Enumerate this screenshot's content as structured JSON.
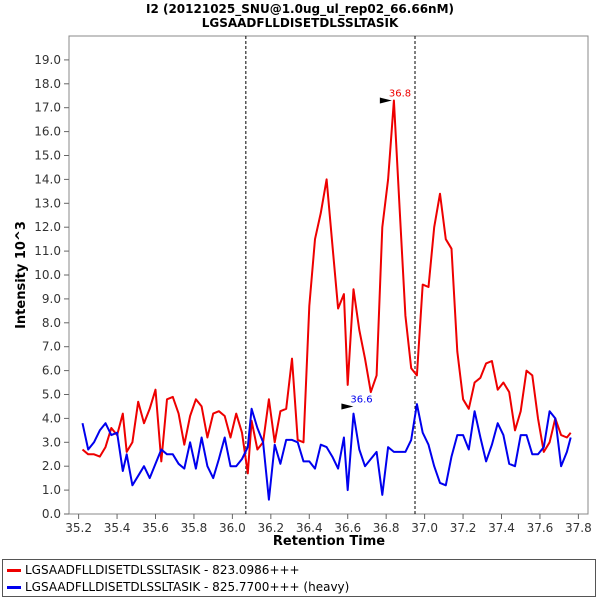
{
  "chart_data": {
    "type": "line",
    "title": "I2 (20121025_SNU@1.0ug_ul_rep02_66.66nM)",
    "subtitle": "LGSAADFLLDISETDLSSLTASIK",
    "xlabel": "Retention Time",
    "ylabel": "Intensity 10^3",
    "xlim": [
      35.15,
      37.85
    ],
    "ylim": [
      0,
      20
    ],
    "xticks": [
      "35.2",
      "35.4",
      "35.6",
      "35.8",
      "36.0",
      "36.2",
      "36.4",
      "36.6",
      "36.8",
      "37.0",
      "37.2",
      "37.4",
      "37.6",
      "37.8"
    ],
    "yticks": [
      "0.0",
      "1.0",
      "2.0",
      "3.0",
      "4.0",
      "5.0",
      "6.0",
      "7.0",
      "8.0",
      "9.0",
      "10.0",
      "11.0",
      "12.0",
      "13.0",
      "14.0",
      "15.0",
      "16.0",
      "17.0",
      "18.0",
      "19.0"
    ],
    "vlines": [
      36.07,
      36.95
    ],
    "legend_position": "bottom",
    "series": [
      {
        "name": "LGSAADFLLDISETDLSSLTASIK - 823.0986+++",
        "color": "#ee0000",
        "x": [
          35.22,
          35.25,
          35.28,
          35.31,
          35.34,
          35.37,
          35.4,
          35.43,
          35.45,
          35.48,
          35.51,
          35.54,
          35.57,
          35.6,
          35.63,
          35.66,
          35.69,
          35.72,
          35.75,
          35.78,
          35.81,
          35.84,
          35.87,
          35.9,
          35.93,
          35.96,
          35.99,
          36.02,
          36.05,
          36.08,
          36.1,
          36.13,
          36.16,
          36.19,
          36.22,
          36.25,
          36.28,
          36.31,
          36.34,
          36.37,
          36.4,
          36.43,
          36.46,
          36.49,
          36.52,
          36.55,
          36.58,
          36.6,
          36.63,
          36.66,
          36.69,
          36.72,
          36.75,
          36.78,
          36.81,
          36.84,
          36.87,
          36.9,
          36.93,
          36.96,
          36.99,
          37.02,
          37.05,
          37.08,
          37.11,
          37.14,
          37.17,
          37.2,
          37.23,
          37.26,
          37.29,
          37.32,
          37.35,
          37.38,
          37.41,
          37.44,
          37.47,
          37.5,
          37.53,
          37.56,
          37.59,
          37.62,
          37.65,
          37.68,
          37.71,
          37.74,
          37.76
        ],
        "values": [
          2.7,
          2.5,
          2.5,
          2.4,
          2.8,
          3.6,
          3.3,
          4.2,
          2.6,
          3.0,
          4.7,
          3.8,
          4.4,
          5.2,
          2.2,
          4.8,
          4.9,
          4.2,
          2.9,
          4.1,
          4.8,
          4.5,
          3.2,
          4.2,
          4.3,
          4.1,
          3.2,
          4.2,
          3.4,
          1.7,
          3.9,
          2.7,
          3.0,
          4.8,
          3.0,
          4.3,
          4.4,
          6.5,
          3.1,
          3.0,
          8.7,
          11.5,
          12.6,
          14.0,
          11.3,
          8.6,
          9.2,
          5.4,
          9.4,
          7.7,
          6.5,
          5.1,
          5.8,
          12.0,
          14.0,
          17.3,
          12.8,
          8.3,
          6.1,
          5.8,
          9.6,
          9.5,
          12.0,
          13.4,
          11.5,
          11.1,
          6.8,
          4.8,
          4.4,
          5.5,
          5.7,
          6.3,
          6.4,
          5.2,
          5.5,
          5.1,
          3.5,
          4.3,
          6.0,
          5.8,
          4.0,
          2.6,
          3.0,
          4.0,
          3.3,
          3.2,
          3.4
        ]
      },
      {
        "name": "LGSAADFLLDISETDLSSLTASIK - 825.7700+++ (heavy)",
        "color": "#0000ee",
        "x": [
          35.22,
          35.25,
          35.28,
          35.31,
          35.34,
          35.37,
          35.4,
          35.43,
          35.45,
          35.48,
          35.51,
          35.54,
          35.57,
          35.6,
          35.63,
          35.66,
          35.69,
          35.72,
          35.75,
          35.78,
          35.81,
          35.84,
          35.87,
          35.9,
          35.93,
          35.96,
          35.99,
          36.02,
          36.05,
          36.08,
          36.1,
          36.13,
          36.16,
          36.19,
          36.22,
          36.25,
          36.28,
          36.31,
          36.34,
          36.37,
          36.4,
          36.43,
          36.46,
          36.49,
          36.52,
          36.55,
          36.58,
          36.6,
          36.63,
          36.66,
          36.69,
          36.72,
          36.75,
          36.78,
          36.81,
          36.84,
          36.87,
          36.9,
          36.93,
          36.96,
          36.99,
          37.02,
          37.05,
          37.08,
          37.11,
          37.14,
          37.17,
          37.2,
          37.23,
          37.26,
          37.29,
          37.32,
          37.35,
          37.38,
          37.41,
          37.44,
          37.47,
          37.5,
          37.53,
          37.56,
          37.59,
          37.62,
          37.65,
          37.68,
          37.71,
          37.74,
          37.76
        ],
        "values": [
          3.8,
          2.7,
          3.0,
          3.5,
          3.8,
          3.3,
          3.4,
          1.8,
          2.5,
          1.2,
          1.6,
          2.0,
          1.5,
          2.1,
          2.7,
          2.5,
          2.5,
          2.1,
          1.9,
          3.0,
          1.9,
          3.2,
          2.0,
          1.5,
          2.3,
          3.2,
          2.0,
          2.0,
          2.3,
          2.8,
          4.4,
          3.6,
          3.0,
          0.6,
          2.9,
          2.1,
          3.1,
          3.1,
          3.0,
          2.2,
          2.2,
          1.9,
          2.9,
          2.8,
          2.4,
          1.9,
          3.2,
          1.0,
          4.2,
          2.7,
          2.0,
          2.3,
          2.6,
          0.8,
          2.8,
          2.6,
          2.6,
          2.6,
          3.1,
          4.6,
          3.4,
          2.9,
          2.0,
          1.3,
          1.2,
          2.4,
          3.3,
          3.3,
          2.7,
          4.3,
          3.2,
          2.2,
          2.9,
          3.8,
          3.3,
          2.1,
          2.0,
          3.3,
          3.3,
          2.5,
          2.5,
          2.8,
          4.3,
          4.0,
          2.0,
          2.6,
          3.2
        ]
      }
    ],
    "annotations": [
      {
        "text": "36.8",
        "x": 36.84,
        "y": 17.3,
        "color": "#ee0000"
      },
      {
        "text": "36.6",
        "x": 36.64,
        "y": 4.5,
        "color": "#0000ee"
      }
    ]
  }
}
